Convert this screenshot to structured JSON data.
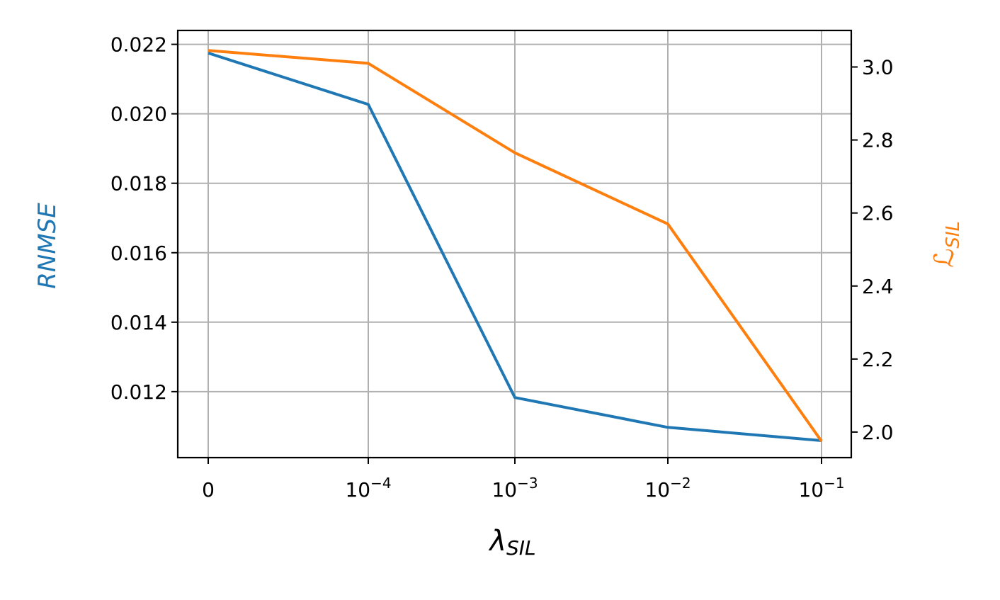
{
  "chart_data": {
    "type": "line",
    "categories": [
      "0",
      "10^-4",
      "10^-3",
      "10^-2",
      "10^-1"
    ],
    "x_tick_labels": [
      {
        "base": "0",
        "exp": ""
      },
      {
        "base": "10",
        "exp": "−4"
      },
      {
        "base": "10",
        "exp": "−3"
      },
      {
        "base": "10",
        "exp": "−2"
      },
      {
        "base": "10",
        "exp": "−1"
      }
    ],
    "xlabel": {
      "symbol": "λ",
      "subscript": "SIL"
    },
    "ylabel_left": "RNMSE",
    "ylabel_right": {
      "symbol": "ℒ",
      "subscript": "SIL"
    },
    "left_axis": {
      "ylim": [
        0.0101,
        0.0224
      ],
      "ticks": [
        0.012,
        0.014,
        0.016,
        0.018,
        0.02,
        0.022
      ],
      "tick_labels": [
        "0.012",
        "0.014",
        "0.016",
        "0.018",
        "0.020",
        "0.022"
      ]
    },
    "right_axis": {
      "ylim": [
        1.93,
        3.1
      ],
      "ticks": [
        2.0,
        2.2,
        2.4,
        2.6,
        2.8,
        3.0
      ],
      "tick_labels": [
        "2.0",
        "2.2",
        "2.4",
        "2.6",
        "2.8",
        "3.0"
      ]
    },
    "series": [
      {
        "axis": "left",
        "color": "#1f77b4",
        "values": [
          0.02175,
          0.02027,
          0.01183,
          0.01097,
          0.01059
        ]
      },
      {
        "axis": "right",
        "color": "#ff7f0e",
        "values": [
          3.045,
          3.01,
          2.765,
          2.57,
          1.975
        ]
      }
    ],
    "grid": true,
    "colors": {
      "left_label": "#1f77b4",
      "right_label": "#ff7f0e",
      "grid": "#b0b0b0"
    }
  }
}
